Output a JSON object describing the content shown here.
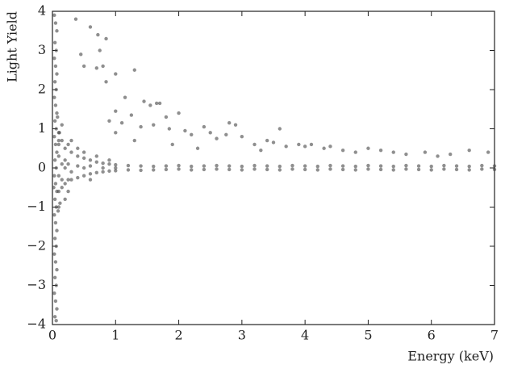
{
  "chart_data": {
    "type": "scatter",
    "xlabel": "Energy (keV)",
    "ylabel": "Light Yield",
    "color": "#444444",
    "xlim": [
      0,
      7
    ],
    "ylim": [
      -4,
      4
    ],
    "xticks": [
      0,
      1,
      2,
      3,
      4,
      5,
      6,
      7
    ],
    "yticks": [
      {
        "value": -4,
        "label": "−4"
      },
      {
        "value": -3,
        "label": "−3"
      },
      {
        "value": -2,
        "label": "−2"
      },
      {
        "value": -1,
        "label": "−1"
      },
      0,
      1,
      2,
      3,
      4
    ],
    "x": [
      0.03,
      0.05,
      0.07,
      0.04,
      0.06,
      0.03,
      0.05,
      0.07,
      0.04,
      0.06,
      0.03,
      0.05,
      0.07,
      0.04,
      0.06,
      0.03,
      0.05,
      0.07,
      0.04,
      0.06,
      0.03,
      0.05,
      0.07,
      0.04,
      0.06,
      0.03,
      0.05,
      0.07,
      0.04,
      0.06,
      0.03,
      0.05,
      0.07,
      0.04,
      0.06,
      0.03,
      0.05,
      0.07,
      0.04,
      0.06,
      0.08,
      0.09,
      0.1,
      0.02,
      0.11,
      0.12,
      0.1,
      0.1,
      0.1,
      0.1,
      0.1,
      0.1,
      0.15,
      0.15,
      0.15,
      0.15,
      0.15,
      0.2,
      0.2,
      0.2,
      0.2,
      0.2,
      0.25,
      0.25,
      0.25,
      0.25,
      0.3,
      0.3,
      0.3,
      0.3,
      0.4,
      0.4,
      0.4,
      0.4,
      0.5,
      0.5,
      0.5,
      0.5,
      0.6,
      0.6,
      0.6,
      0.6,
      0.7,
      0.7,
      0.7,
      0.8,
      0.8,
      0.8,
      0.9,
      0.9,
      0.9,
      1.0,
      1.0,
      1.0,
      1.2,
      1.2,
      1.4,
      1.4,
      1.6,
      1.6,
      1.8,
      1.8,
      2.0,
      2.0,
      2.2,
      2.2,
      2.4,
      2.4,
      2.6,
      2.6,
      2.8,
      2.8,
      3.0,
      3.0,
      3.2,
      3.2,
      3.4,
      3.4,
      3.6,
      3.6,
      3.8,
      3.8,
      4.0,
      4.0,
      4.2,
      4.2,
      4.4,
      4.4,
      4.6,
      4.6,
      4.8,
      4.8,
      5.0,
      5.0,
      5.2,
      5.2,
      5.4,
      5.4,
      5.6,
      5.6,
      5.8,
      5.8,
      6.0,
      6.0,
      6.2,
      6.2,
      6.4,
      6.4,
      6.6,
      6.6,
      6.8,
      6.8,
      7.0,
      7.0,
      0.37,
      0.6,
      0.72,
      0.85,
      0.75,
      0.45,
      0.5,
      0.8,
      0.7,
      1.0,
      1.3,
      0.85,
      1.15,
      1.45,
      1.55,
      1.65,
      1.7,
      1.0,
      1.25,
      1.8,
      2.0,
      1.6,
      1.4,
      1.85,
      1.1,
      2.1,
      2.4,
      2.5,
      2.8,
      2.9,
      2.75,
      3.0,
      2.2,
      2.6,
      3.2,
      3.4,
      3.5,
      3.6,
      3.7,
      3.9,
      4.0,
      4.1,
      4.3,
      4.4,
      4.6,
      4.8,
      5.0,
      5.2,
      5.4,
      5.6,
      5.9,
      6.1,
      6.3,
      6.6,
      6.9,
      3.3,
      2.3,
      1.9,
      1.3,
      1.0,
      0.9
    ],
    "values": [
      3.9,
      3.7,
      3.5,
      3.2,
      3.0,
      2.8,
      2.6,
      2.4,
      2.2,
      2.0,
      1.8,
      1.6,
      1.4,
      1.2,
      1.0,
      0.8,
      0.6,
      0.4,
      0.2,
      0.0,
      -0.2,
      -0.4,
      -0.6,
      -0.8,
      -1.0,
      -1.2,
      -1.4,
      -1.6,
      -1.8,
      -2.0,
      -2.2,
      -2.4,
      -2.6,
      -2.8,
      -3.0,
      -3.2,
      -3.4,
      -3.6,
      -3.8,
      -3.9,
      1.3,
      -1.1,
      0.7,
      -0.5,
      0.9,
      -0.9,
      0.9,
      -0.6,
      0.3,
      -0.2,
      0.6,
      -1.0,
      0.7,
      -0.5,
      0.1,
      -0.3,
      1.1,
      0.5,
      -0.4,
      0.2,
      -0.8,
      0.0,
      0.6,
      -0.3,
      0.1,
      -0.6,
      0.4,
      -0.3,
      -0.1,
      0.7,
      0.3,
      -0.25,
      0.05,
      0.5,
      0.25,
      -0.2,
      0.0,
      0.4,
      0.2,
      -0.15,
      0.05,
      -0.3,
      0.15,
      -0.12,
      0.3,
      0.12,
      -0.1,
      0.0,
      0.1,
      -0.08,
      0.2,
      0.08,
      -0.07,
      0.0,
      0.06,
      -0.05,
      0.05,
      -0.06,
      0.04,
      -0.05,
      0.05,
      -0.04,
      0.06,
      -0.03,
      0.04,
      -0.05,
      0.05,
      -0.04,
      0.06,
      -0.03,
      0.05,
      -0.04,
      0.04,
      -0.05,
      0.06,
      -0.03,
      0.05,
      -0.04,
      0.04,
      -0.05,
      0.06,
      -0.03,
      0.05,
      -0.04,
      0.04,
      -0.05,
      0.06,
      -0.03,
      0.05,
      -0.04,
      0.04,
      -0.05,
      0.06,
      -0.03,
      0.05,
      -0.04,
      0.04,
      -0.05,
      0.06,
      -0.03,
      0.05,
      -0.04,
      0.04,
      -0.05,
      0.06,
      -0.03,
      0.05,
      -0.04,
      0.04,
      -0.05,
      0.06,
      -0.03,
      0.05,
      -0.04,
      3.8,
      3.6,
      3.4,
      3.3,
      3.0,
      2.9,
      2.6,
      2.6,
      2.55,
      2.4,
      2.5,
      2.2,
      1.8,
      1.7,
      1.6,
      1.65,
      1.65,
      1.45,
      1.35,
      1.3,
      1.4,
      1.1,
      1.05,
      1.0,
      1.15,
      0.95,
      1.05,
      0.9,
      1.15,
      1.1,
      0.85,
      0.8,
      0.85,
      0.75,
      0.6,
      0.7,
      0.65,
      1.0,
      0.55,
      0.6,
      0.55,
      0.6,
      0.5,
      0.55,
      0.45,
      0.4,
      0.5,
      0.45,
      0.4,
      0.35,
      0.4,
      0.3,
      0.35,
      0.45,
      0.4,
      0.45,
      0.5,
      0.6,
      0.7,
      0.9,
      1.2
    ]
  }
}
